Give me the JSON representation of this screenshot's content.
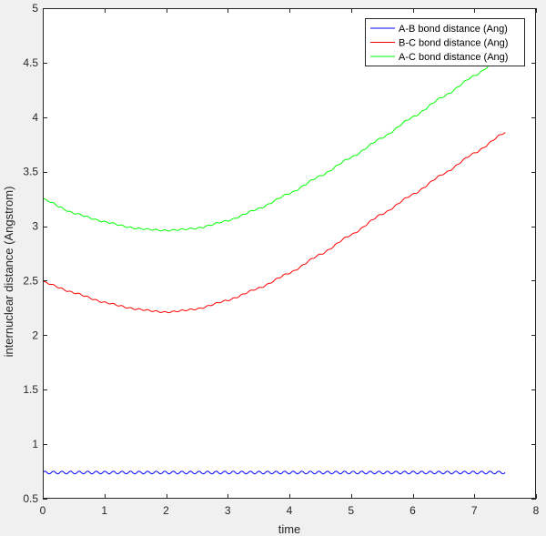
{
  "chart_data": {
    "type": "line",
    "title": "",
    "xlabel": "time",
    "ylabel": "internuclear distance (Angstrom)",
    "xlim": [
      0,
      8
    ],
    "ylim": [
      0.5,
      5
    ],
    "xticks": [
      "0",
      "1",
      "2",
      "3",
      "4",
      "5",
      "6",
      "7",
      "8"
    ],
    "yticks": [
      "0.5",
      "1",
      "1.5",
      "2",
      "2.5",
      "3",
      "3.5",
      "4",
      "4.5",
      "5"
    ],
    "grid": false,
    "legend_position": "top-right",
    "series": [
      {
        "name": "A-B bond distance (Ang)",
        "color": "#0000ff",
        "x": [
          0,
          0.5,
          1,
          1.5,
          2,
          2.5,
          3,
          3.5,
          4,
          4.5,
          5,
          5.5,
          6,
          6.5,
          7,
          7.5
        ],
        "y": [
          0.74,
          0.74,
          0.74,
          0.74,
          0.74,
          0.74,
          0.74,
          0.74,
          0.74,
          0.74,
          0.74,
          0.74,
          0.74,
          0.74,
          0.74,
          0.74
        ]
      },
      {
        "name": "B-C bond distance (Ang)",
        "color": "#ff0000",
        "x": [
          0,
          0.5,
          1,
          1.5,
          2,
          2.5,
          3,
          3.5,
          4,
          4.5,
          5,
          5.5,
          6,
          6.5,
          7,
          7.5
        ],
        "y": [
          2.49,
          2.39,
          2.3,
          2.24,
          2.21,
          2.24,
          2.32,
          2.43,
          2.57,
          2.74,
          2.92,
          3.11,
          3.29,
          3.48,
          3.67,
          3.86
        ]
      },
      {
        "name": "A-C bond distance (Ang)",
        "color": "#00ff00",
        "x": [
          0,
          0.5,
          1,
          1.5,
          2,
          2.5,
          3,
          3.5,
          4,
          4.5,
          5,
          5.5,
          6,
          6.5,
          7,
          7.5
        ],
        "y": [
          3.25,
          3.12,
          3.04,
          2.98,
          2.96,
          2.98,
          3.05,
          3.16,
          3.3,
          3.46,
          3.63,
          3.81,
          4.0,
          4.19,
          4.38,
          4.58
        ]
      }
    ]
  }
}
